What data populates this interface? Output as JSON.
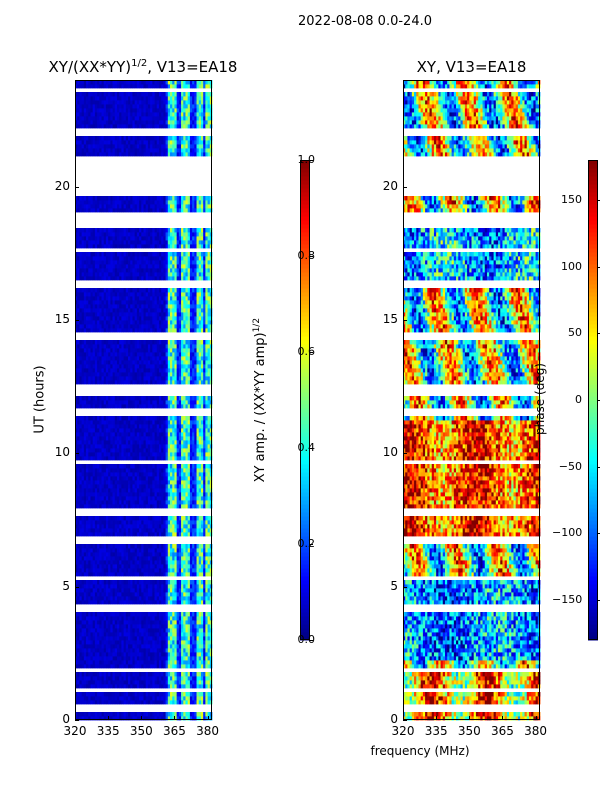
{
  "suptitle": "2022-08-08 0.0-24.0",
  "chart_data": [
    {
      "type": "heatmap",
      "title": "XY/(XX*YY)^1/2, V13=EA18",
      "title_main": "XY/(XX*YY)",
      "title_sup": "1/2",
      "title_rest": ", V13=EA18",
      "ylabel": "UT (hours)",
      "xlabel": "",
      "xlim": [
        320,
        382
      ],
      "ylim": [
        0,
        24
      ],
      "xticks": [
        "320",
        "335",
        "350",
        "365",
        "380"
      ],
      "xtick_values": [
        320,
        335,
        350,
        365,
        380
      ],
      "yticks": [
        "0",
        "5",
        "10",
        "15",
        "20"
      ],
      "ytick_values": [
        0,
        5,
        10,
        15,
        20
      ],
      "colorbar": {
        "label": "XY amp. / (XX*YY amp)^1/2",
        "label_main": "XY amp. / (XX*YY amp)",
        "label_sup": "1/2",
        "range": [
          0.0,
          1.0
        ],
        "ticks": [
          "0.0",
          "0.2",
          "0.4",
          "0.6",
          "0.8",
          "1.0"
        ],
        "tick_values": [
          0.0,
          0.2,
          0.4,
          0.6,
          0.8,
          1.0
        ]
      },
      "missing_hours": [
        [
          19.7,
          21.1
        ],
        [
          18.5,
          19.1
        ],
        [
          21.9,
          22.15
        ],
        [
          11.4,
          11.75
        ],
        [
          12.2,
          12.55
        ],
        [
          6.6,
          6.85
        ],
        [
          5.2,
          5.45
        ],
        [
          4.1,
          4.3
        ],
        [
          1.75,
          2.0
        ],
        [
          0.35,
          0.55
        ],
        [
          23.5,
          23.7
        ],
        [
          16.2,
          16.45
        ],
        [
          14.3,
          14.55
        ],
        [
          7.7,
          7.9
        ],
        [
          1.0,
          1.15
        ],
        [
          17.5,
          17.75
        ],
        [
          9.6,
          9.75
        ]
      ],
      "bright_channels_mhz": [
        [
          362,
          366
        ],
        [
          368,
          372
        ],
        [
          375,
          378
        ],
        [
          379,
          382
        ]
      ],
      "description": "Low normalized amplitude (~0.05) at 320-361 MHz; elevated values (0.2-0.6) in channels above ~362 MHz"
    },
    {
      "type": "heatmap",
      "title": "XY, V13=EA18",
      "ylabel": "",
      "xlabel": "frequency (MHz)",
      "xlim": [
        320,
        382
      ],
      "ylim": [
        0,
        24
      ],
      "xticks": [
        "320",
        "335",
        "350",
        "365",
        "380"
      ],
      "xtick_values": [
        320,
        335,
        350,
        365,
        380
      ],
      "yticks": [
        "0",
        "5",
        "10",
        "15",
        "20"
      ],
      "ytick_values": [
        0,
        5,
        10,
        15,
        20
      ],
      "colorbar": {
        "label": "phase (deg)",
        "range": [
          -180,
          180
        ],
        "ticks": [
          "−150",
          "−100",
          "−50",
          "0",
          "50",
          "100",
          "150"
        ],
        "tick_values": [
          -150,
          -100,
          -50,
          0,
          50,
          100,
          150
        ]
      },
      "missing_hours": [
        [
          19.7,
          21.1
        ],
        [
          18.5,
          19.1
        ],
        [
          21.9,
          22.15
        ],
        [
          11.4,
          11.75
        ],
        [
          12.2,
          12.55
        ],
        [
          6.6,
          6.85
        ],
        [
          5.2,
          5.45
        ],
        [
          4.1,
          4.3
        ],
        [
          1.75,
          2.0
        ],
        [
          0.35,
          0.55
        ],
        [
          23.5,
          23.7
        ],
        [
          16.2,
          16.45
        ],
        [
          14.3,
          14.55
        ],
        [
          7.7,
          7.9
        ],
        [
          1.0,
          1.15
        ],
        [
          17.5,
          17.75
        ],
        [
          9.6,
          9.75
        ]
      ],
      "description": "Noisy phase; warm (+100 to +180 deg) around 7-11 h, cool (-50 to -120 deg) around 2-5 h and 17-19 h"
    }
  ]
}
